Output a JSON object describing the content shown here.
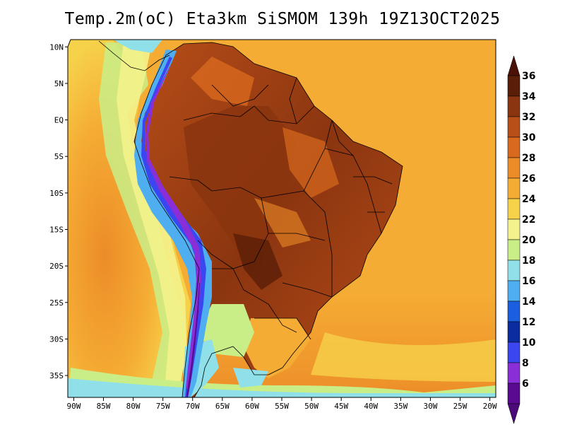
{
  "title": "Temp.2m(oC) Eta3km SiSMOM 139h 19Z13OCT2025",
  "map": {
    "lon_range": [
      -91,
      -19
    ],
    "lat_range": [
      -38,
      11
    ],
    "lon_ticks": [
      "90W",
      "85W",
      "80W",
      "75W",
      "70W",
      "65W",
      "60W",
      "55W",
      "50W",
      "45W",
      "40W",
      "35W",
      "30W",
      "25W",
      "20W"
    ],
    "lon_values": [
      -90,
      -85,
      -80,
      -75,
      -70,
      -65,
      -60,
      -55,
      -50,
      -45,
      -40,
      -35,
      -30,
      -25,
      -20
    ],
    "lat_ticks": [
      "10N",
      "5N",
      "EQ",
      "5S",
      "10S",
      "15S",
      "20S",
      "25S",
      "30S",
      "35S"
    ],
    "lat_values": [
      10,
      5,
      0,
      -5,
      -10,
      -15,
      -20,
      -25,
      -30,
      -35
    ]
  },
  "colorbar": {
    "labels": [
      "36",
      "34",
      "32",
      "30",
      "28",
      "26",
      "24",
      "22",
      "20",
      "18",
      "16",
      "14",
      "12",
      "10",
      "8",
      "6"
    ],
    "values": [
      36,
      34,
      32,
      30,
      28,
      26,
      24,
      22,
      20,
      18,
      16,
      14,
      12,
      10,
      8,
      6
    ],
    "colors": [
      "#5a1e08",
      "#8b3510",
      "#b84e18",
      "#d8691e",
      "#ec8c28",
      "#f5ac34",
      "#f6d14a",
      "#f4f28c",
      "#c9ee88",
      "#8fe0e8",
      "#4eaef0",
      "#1b5fe0",
      "#0a2ca0",
      "#3c46f0",
      "#8a2fd8",
      "#5a0a90"
    ],
    "top_color": "#4a1206",
    "bottom_color": "#4a0a78"
  }
}
